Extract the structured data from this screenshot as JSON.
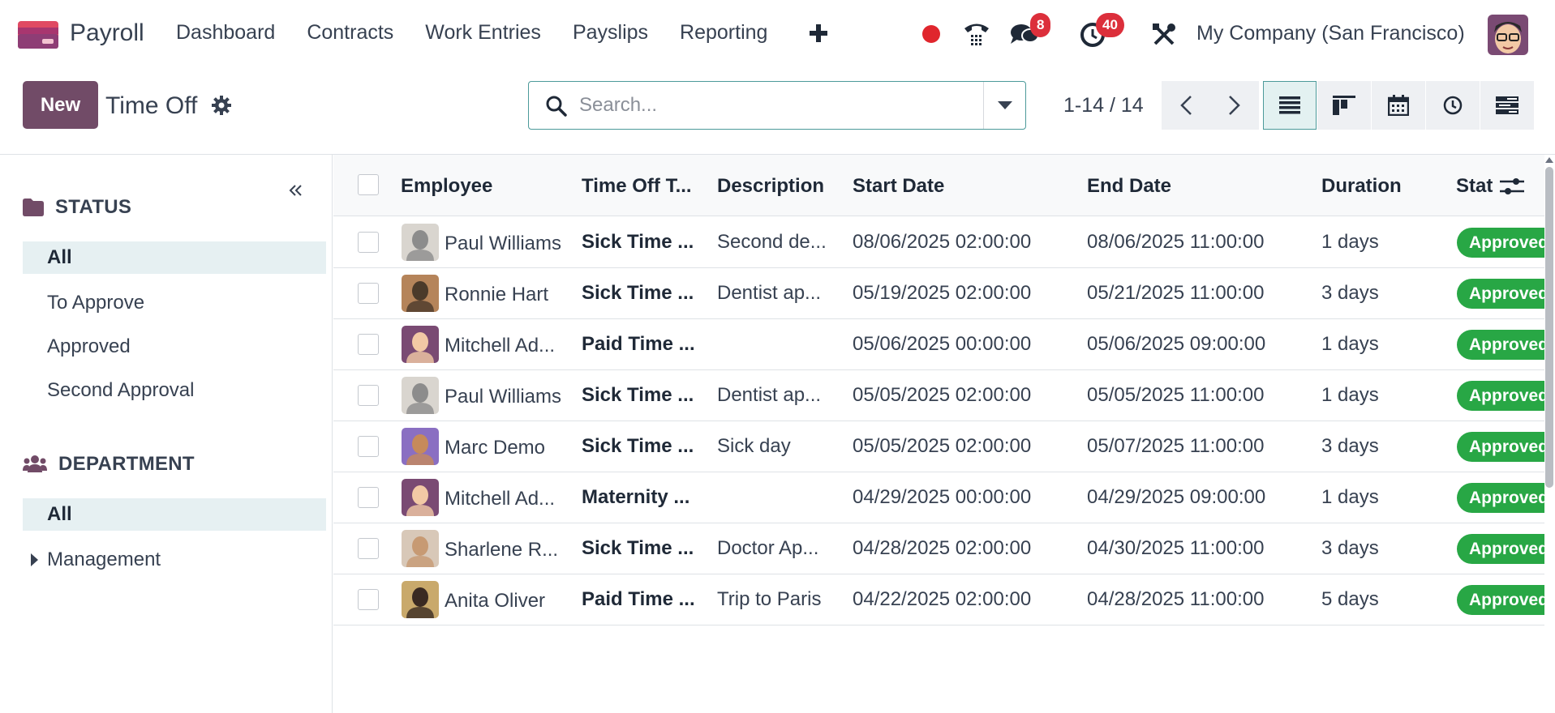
{
  "app": {
    "name": "Payroll"
  },
  "menu": [
    "Dashboard",
    "Contracts",
    "Work Entries",
    "Payslips",
    "Reporting"
  ],
  "systray": {
    "messages_count": "8",
    "activities_count": "40",
    "company": "My Company (San Francisco)"
  },
  "control": {
    "new_label": "New",
    "title": "Time Off",
    "search_placeholder": "Search...",
    "pager": "1-14 / 14"
  },
  "sidebar": {
    "status": {
      "title": "STATUS",
      "items": [
        "All",
        "To Approve",
        "Approved",
        "Second Approval"
      ]
    },
    "department": {
      "title": "DEPARTMENT",
      "items": [
        "All",
        "Management"
      ]
    }
  },
  "table": {
    "columns": [
      "Employee",
      "Time Off T...",
      "Description",
      "Start Date",
      "End Date",
      "Duration",
      "Stat"
    ],
    "rows": [
      {
        "employee": "Paul Williams",
        "type": "Sick Time ...",
        "description": "Second de...",
        "start": "08/06/2025 02:00:00",
        "end": "08/06/2025 11:00:00",
        "duration": "1 days",
        "status": "Approved"
      },
      {
        "employee": "Ronnie Hart",
        "type": "Sick Time ...",
        "description": "Dentist ap...",
        "start": "05/19/2025 02:00:00",
        "end": "05/21/2025 11:00:00",
        "duration": "3 days",
        "status": "Approved"
      },
      {
        "employee": "Mitchell Ad...",
        "type": "Paid Time ...",
        "description": "",
        "start": "05/06/2025 00:00:00",
        "end": "05/06/2025 09:00:00",
        "duration": "1 days",
        "status": "Approved"
      },
      {
        "employee": "Paul Williams",
        "type": "Sick Time ...",
        "description": "Dentist ap...",
        "start": "05/05/2025 02:00:00",
        "end": "05/05/2025 11:00:00",
        "duration": "1 days",
        "status": "Approved"
      },
      {
        "employee": "Marc Demo",
        "type": "Sick Time ...",
        "description": "Sick day",
        "start": "05/05/2025 02:00:00",
        "end": "05/07/2025 11:00:00",
        "duration": "3 days",
        "status": "Approved"
      },
      {
        "employee": "Mitchell Ad...",
        "type": "Maternity ...",
        "description": "",
        "start": "04/29/2025 00:00:00",
        "end": "04/29/2025 09:00:00",
        "duration": "1 days",
        "status": "Approved"
      },
      {
        "employee": "Sharlene R...",
        "type": "Sick Time ...",
        "description": "Doctor Ap...",
        "start": "04/28/2025 02:00:00",
        "end": "04/30/2025 11:00:00",
        "duration": "3 days",
        "status": "Approved"
      },
      {
        "employee": "Anita Oliver",
        "type": "Paid Time ...",
        "description": "Trip to Paris",
        "start": "04/22/2025 02:00:00",
        "end": "04/28/2025 11:00:00",
        "duration": "5 days",
        "status": "Approved"
      }
    ]
  },
  "colors": {
    "brand": "#714b67",
    "accent": "#4c9a9a",
    "approved": "#28a745",
    "badge": "#dc2f3b",
    "record": "#e0262d"
  },
  "icons": [
    "payroll-logo-icon",
    "plus-icon",
    "record-icon",
    "phone-icon",
    "chat-icon",
    "clock-icon",
    "tools-icon",
    "gear-icon",
    "search-icon",
    "caret-down-icon",
    "chevron-left-icon",
    "chevron-right-icon",
    "list-view-icon",
    "kanban-view-icon",
    "calendar-view-icon",
    "activity-view-icon",
    "gantt-view-icon",
    "folder-icon",
    "users-icon",
    "double-chevron-left-icon",
    "settings-sliders-icon"
  ]
}
